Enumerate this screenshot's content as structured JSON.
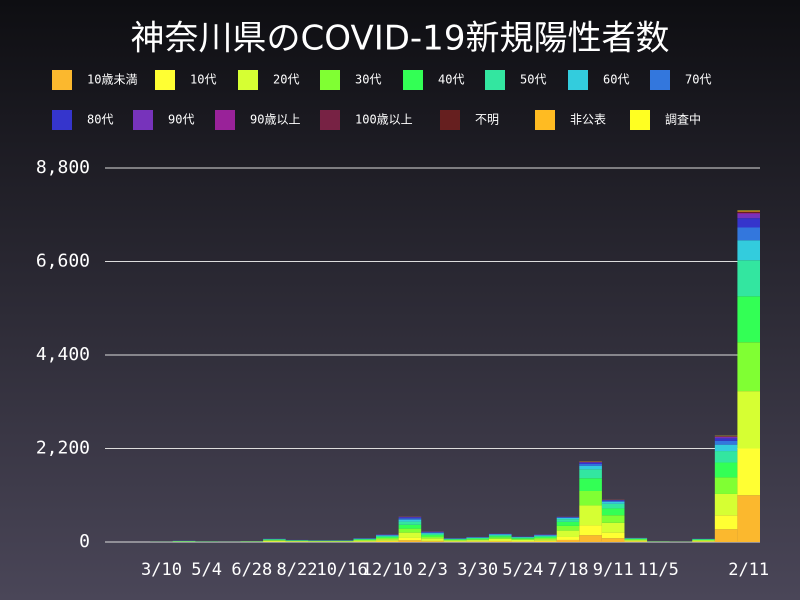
{
  "chart_data": {
    "type": "stacked-bar",
    "title": "神奈川県のCOVID-19新規陽性者数",
    "categories": [
      null,
      null,
      "3/10",
      null,
      "5/4",
      null,
      "6/28",
      null,
      "8/22",
      null,
      "10/16",
      null,
      "12/10",
      null,
      "2/3",
      null,
      "3/30",
      null,
      "5/24",
      null,
      "7/18",
      null,
      "9/11",
      null,
      "11/5",
      null,
      null,
      null,
      "2/11"
    ],
    "ylim": [
      0,
      8800
    ],
    "yticks": [
      0,
      {
        "value": 2200,
        "label": "2,200"
      },
      {
        "value": 4400,
        "label": "4,400"
      },
      {
        "value": 6600,
        "label": "6,600"
      },
      {
        "value": 8800,
        "label": "8,800"
      }
    ],
    "grid": true,
    "series": [
      {
        "name": "10歳未満",
        "color": "#fbb82e",
        "values": [
          0,
          0,
          0,
          1,
          0,
          0,
          1,
          5,
          3,
          2,
          2,
          6,
          12,
          40,
          16,
          6,
          8,
          14,
          9,
          12,
          48,
          160,
          90,
          9,
          1,
          1,
          8,
          300,
          1100
        ]
      },
      {
        "name": "10代",
        "color": "#ffff33",
        "values": [
          0,
          0,
          0,
          1,
          1,
          0,
          2,
          8,
          5,
          4,
          4,
          9,
          16,
          55,
          22,
          9,
          12,
          20,
          13,
          16,
          70,
          230,
          130,
          12,
          2,
          1,
          10,
          330,
          1100
        ]
      },
      {
        "name": "20代",
        "color": "#d6ff33",
        "values": [
          0,
          0,
          1,
          5,
          3,
          1,
          4,
          18,
          12,
          9,
          9,
          18,
          36,
          125,
          50,
          18,
          25,
          42,
          27,
          36,
          150,
          470,
          230,
          22,
          3,
          2,
          16,
          500,
          1350
        ]
      },
      {
        "name": "30代",
        "color": "#80ff33",
        "values": [
          0,
          0,
          1,
          5,
          3,
          1,
          4,
          13,
          8,
          7,
          7,
          15,
          29,
          95,
          40,
          15,
          19,
          33,
          21,
          29,
          110,
          340,
          180,
          17,
          3,
          2,
          13,
          390,
          1150
        ]
      },
      {
        "name": "40代",
        "color": "#33ff55",
        "values": [
          0,
          0,
          1,
          5,
          3,
          1,
          3,
          12,
          8,
          6,
          6,
          13,
          27,
          90,
          38,
          13,
          18,
          30,
          20,
          27,
          95,
          300,
          160,
          15,
          2,
          1,
          11,
          350,
          1080
        ]
      },
      {
        "name": "50代",
        "color": "#33e6a0",
        "values": [
          0,
          0,
          1,
          5,
          2,
          1,
          3,
          10,
          6,
          5,
          5,
          11,
          22,
          75,
          30,
          11,
          15,
          24,
          16,
          22,
          65,
          210,
          110,
          12,
          2,
          1,
          9,
          270,
          850
        ]
      },
      {
        "name": "60代",
        "color": "#33ccdd",
        "values": [
          0,
          0,
          1,
          3,
          1,
          1,
          1,
          5,
          3,
          3,
          3,
          7,
          13,
          45,
          18,
          7,
          9,
          14,
          9,
          13,
          28,
          80,
          45,
          5,
          1,
          1,
          5,
          150,
          470
        ]
      },
      {
        "name": "70代",
        "color": "#3377dd",
        "values": [
          0,
          0,
          0,
          2,
          1,
          0,
          1,
          4,
          2,
          2,
          2,
          5,
          10,
          32,
          14,
          5,
          6,
          10,
          7,
          10,
          16,
          45,
          25,
          3,
          1,
          1,
          4,
          90,
          300
        ]
      },
      {
        "name": "80代",
        "color": "#3535cc",
        "values": [
          0,
          0,
          0,
          2,
          1,
          0,
          1,
          3,
          2,
          1,
          1,
          4,
          8,
          24,
          12,
          4,
          5,
          7,
          5,
          8,
          10,
          30,
          15,
          2,
          0,
          0,
          2,
          60,
          220
        ]
      },
      {
        "name": "90代",
        "color": "#7733bb",
        "values": [
          0,
          0,
          0,
          1,
          0,
          0,
          0,
          2,
          1,
          1,
          1,
          2,
          4,
          12,
          6,
          2,
          2,
          4,
          2,
          4,
          4,
          15,
          7,
          1,
          0,
          0,
          1,
          30,
          100
        ]
      },
      {
        "name": "90歳以上",
        "color": "#992299",
        "values": [
          0,
          0,
          0,
          0,
          0,
          0,
          0,
          0,
          0,
          0,
          0,
          0,
          1,
          3,
          2,
          0,
          1,
          1,
          1,
          1,
          1,
          5,
          2,
          0,
          0,
          0,
          0,
          8,
          25
        ]
      },
      {
        "name": "100歳以上",
        "color": "#772244",
        "values": [
          0,
          0,
          0,
          0,
          0,
          0,
          0,
          0,
          0,
          0,
          0,
          0,
          0,
          0,
          0,
          0,
          0,
          0,
          0,
          0,
          0,
          0,
          0,
          0,
          0,
          0,
          0,
          0,
          1
        ]
      },
      {
        "name": "不明",
        "color": "#661f1f",
        "values": [
          0,
          0,
          0,
          0,
          0,
          0,
          0,
          0,
          0,
          0,
          0,
          0,
          1,
          2,
          1,
          0,
          0,
          1,
          0,
          1,
          2,
          8,
          4,
          1,
          0,
          0,
          1,
          12,
          30
        ]
      },
      {
        "name": "非公表",
        "color": "#ffbb22",
        "values": [
          0,
          0,
          0,
          0,
          0,
          0,
          0,
          0,
          0,
          0,
          0,
          0,
          0,
          1,
          0,
          0,
          0,
          0,
          0,
          0,
          1,
          4,
          2,
          1,
          0,
          0,
          0,
          6,
          15
        ]
      },
      {
        "name": "調査中",
        "color": "#ffff22",
        "values": [
          0,
          0,
          0,
          0,
          0,
          0,
          0,
          0,
          0,
          0,
          0,
          0,
          1,
          1,
          1,
          0,
          0,
          0,
          0,
          1,
          0,
          3,
          0,
          0,
          0,
          0,
          0,
          4,
          9
        ]
      }
    ]
  }
}
